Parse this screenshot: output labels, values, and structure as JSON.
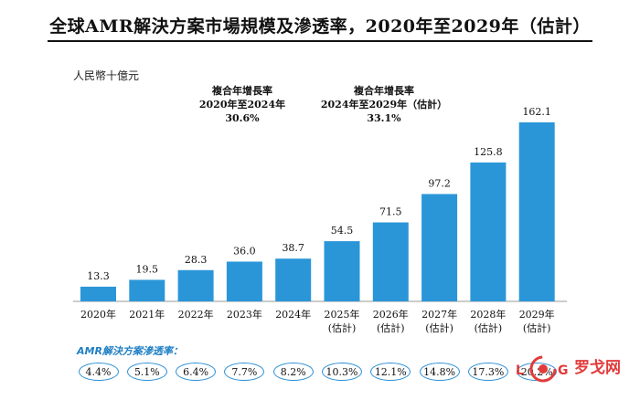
{
  "title": "全球AMR解決方案市場規模及滲透率，2020年至2029年（估計）",
  "unit_label": "人民幣十億元",
  "cagr": [
    {
      "label": "複合年增長率",
      "period": "2020年至2024年",
      "value": "30.6%"
    },
    {
      "label": "複合年增長率",
      "period": "2024年至2029年（估計）",
      "value": "33.1%"
    }
  ],
  "chart_data": {
    "type": "bar",
    "title": "全球AMR解決方案市場規模及滲透率，2020年至2029年（估計）",
    "ylabel": "人民幣十億元",
    "xlabel": "",
    "categories": [
      "2020年",
      "2021年",
      "2022年",
      "2023年",
      "2024年",
      "2025年",
      "2026年",
      "2027年",
      "2028年",
      "2029年"
    ],
    "category_sublabels": [
      "",
      "",
      "",
      "",
      "",
      "(估計)",
      "(估計)",
      "(估計)",
      "(估計)",
      "(估計)"
    ],
    "values": [
      13.3,
      19.5,
      28.3,
      36.0,
      38.7,
      54.5,
      71.5,
      97.2,
      125.8,
      162.1
    ],
    "value_labels": [
      "13.3",
      "19.5",
      "28.3",
      "36.0",
      "38.7",
      "54.5",
      "71.5",
      "97.2",
      "125.8",
      "162.1"
    ],
    "ylim": [
      0,
      162.1
    ],
    "bar_color": "#2a96d8",
    "grid": false,
    "penetration_rate": [
      "4.4%",
      "5.1%",
      "6.4%",
      "7.7%",
      "8.2%",
      "10.3%",
      "12.1%",
      "14.8%",
      "17.3%",
      "20.2%"
    ]
  },
  "penetration_title": "AMR解決方案滲透率：",
  "watermark": {
    "icon": "log-logo-icon",
    "text": "罗戈网"
  }
}
